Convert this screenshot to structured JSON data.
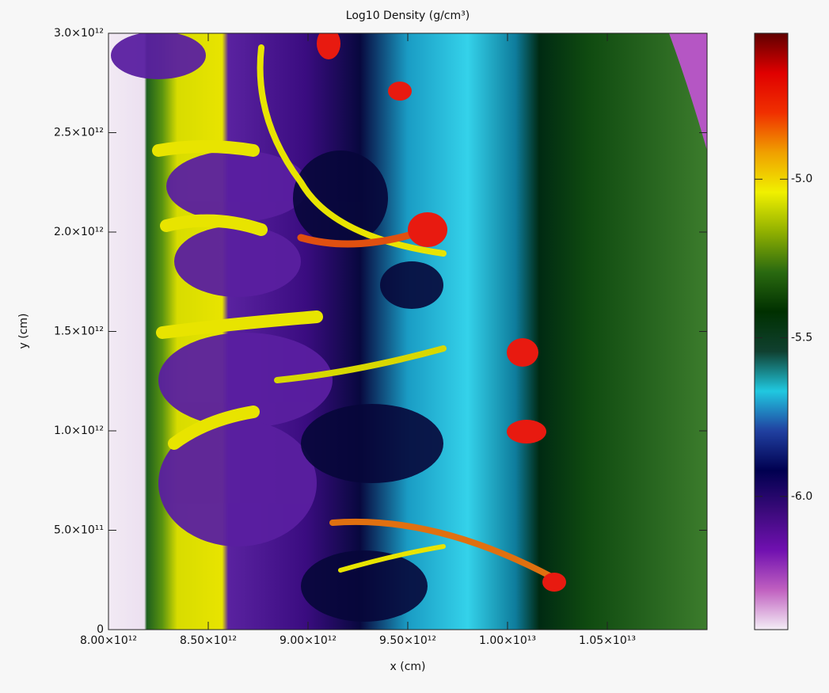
{
  "chart_data": {
    "type": "heatmap",
    "title": "Log10 Density (g/cm³)",
    "x_label": "x (cm)",
    "y_label": "y (cm)",
    "xlim": [
      8000000000000.0,
      11000000000000.0
    ],
    "xticks": [
      {
        "value": 8000000000000.0,
        "label": "8.00×10¹²"
      },
      {
        "value": 8500000000000.0,
        "label": "8.50×10¹²"
      },
      {
        "value": 9000000000000.0,
        "label": "9.00×10¹²"
      },
      {
        "value": 9500000000000.0,
        "label": "9.50×10¹²"
      },
      {
        "value": 10000000000000.0,
        "label": "1.00×10¹³"
      },
      {
        "value": 10500000000000.0,
        "label": "1.05×10¹³"
      }
    ],
    "ylim": [
      0,
      3000000000000.0
    ],
    "yticks": [
      0,
      {
        "value": 500000000000.0,
        "label": "5.0×10¹¹"
      },
      {
        "value": 1000000000000.0,
        "label": "1.0×10¹²"
      },
      {
        "value": 1500000000000.0,
        "label": "1.5×10¹²"
      },
      {
        "value": 2000000000000.0,
        "label": "2.0×10¹²"
      },
      {
        "value": 2500000000000.0,
        "label": "2.5×10¹²"
      },
      {
        "value": 3000000000000.0,
        "label": "3.0×10¹²"
      }
    ],
    "clim": [
      -6.42,
      -4.54
    ],
    "cticks": [
      {
        "value": -5.0,
        "label": "-5.0"
      },
      {
        "value": -5.5,
        "label": "-5.5"
      },
      {
        "value": -6.0,
        "label": "-6.0"
      }
    ],
    "colormap": [
      "#f4eef6",
      "#c060c0",
      "#7010b0",
      "#3a0a7a",
      "#000050",
      "#2040a0",
      "#20c8e0",
      "#104030",
      "#003000",
      "#2a6a10",
      "#90b000",
      "#f0f000",
      "#f0a000",
      "#f03000",
      "#e00000",
      "#600000"
    ]
  }
}
